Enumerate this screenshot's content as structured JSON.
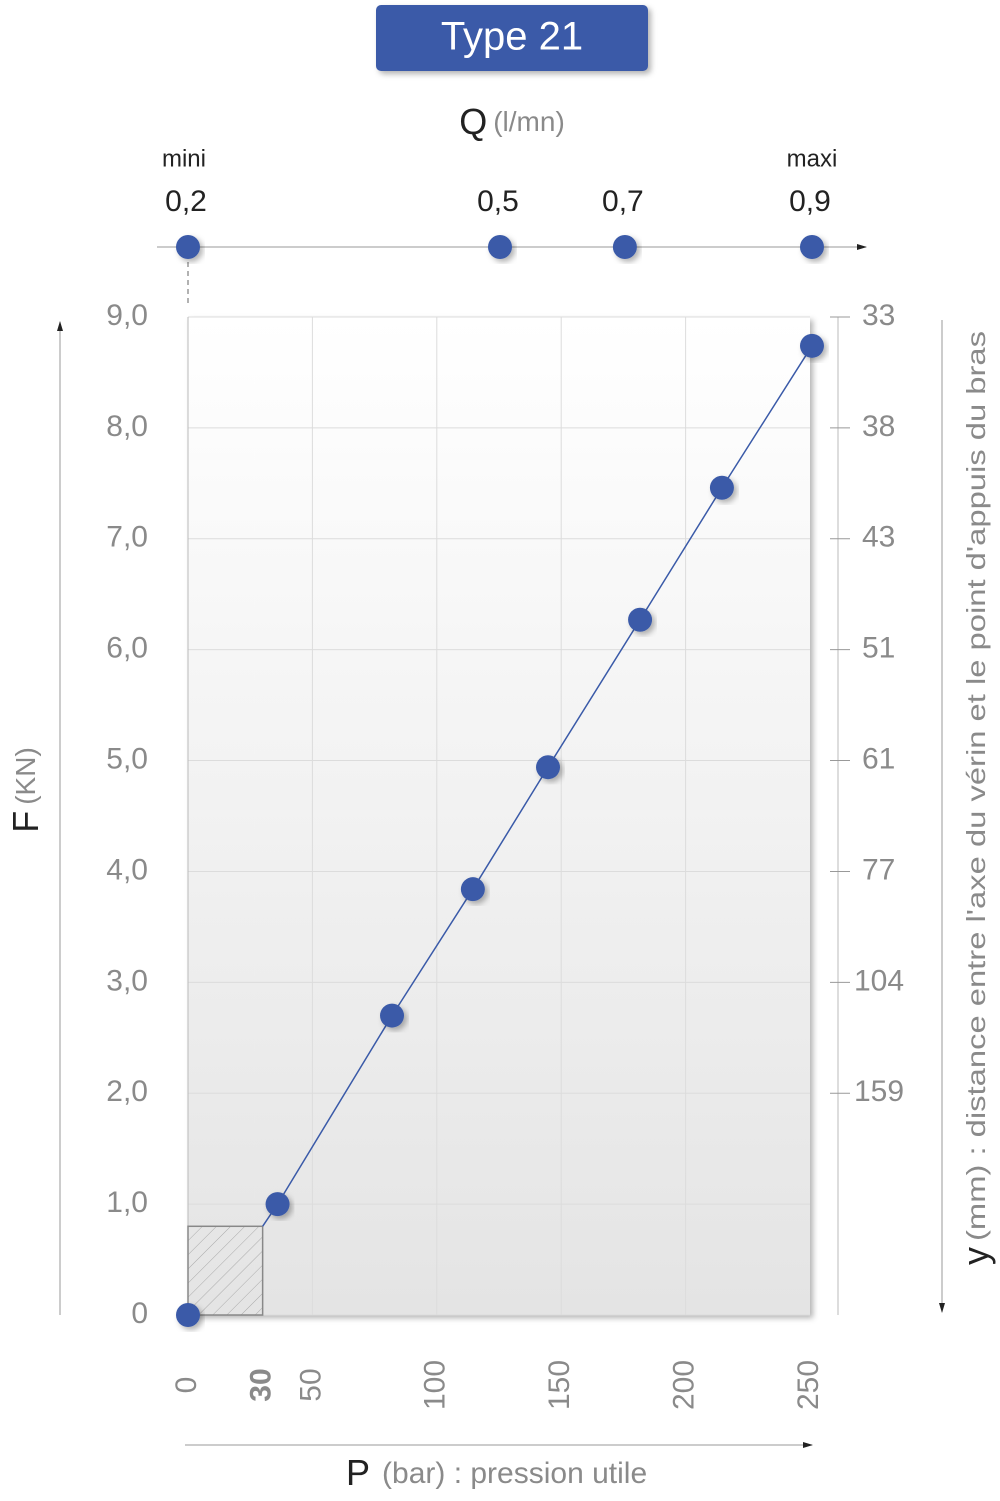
{
  "chart_data": {
    "type": "line",
    "title": "Type 21",
    "x_label": "P",
    "x_unit": "(bar) : pression utile",
    "y_label": "F",
    "y_unit": "(KN)",
    "y2_label": "y",
    "y2_unit": "(mm) : distance entre l'axe du vérin et le point d'appuis du bras",
    "x": [
      0,
      36,
      82,
      114.5,
      144.7,
      181.7,
      214.6,
      250.8
    ],
    "values": [
      0,
      1.0,
      2.7,
      3.84,
      4.94,
      6.27,
      7.46,
      8.74
    ],
    "color": "#3a5aa8",
    "shaded_region": {
      "xlim": [
        0,
        30
      ],
      "ylim": [
        0,
        0.8
      ]
    },
    "xlim": [
      0,
      250
    ],
    "ylim": [
      0,
      9
    ],
    "xticks": [
      0,
      30,
      50,
      100,
      150,
      200,
      250
    ],
    "grid_x": [
      50,
      100,
      150,
      200
    ],
    "yticks": [
      0,
      {
        "value": 1,
        "label": "1,0"
      },
      {
        "value": 2,
        "label": "2,0"
      },
      {
        "value": 3,
        "label": "3,0"
      },
      {
        "value": 4,
        "label": "4,0"
      },
      {
        "value": 5,
        "label": "5,0"
      },
      {
        "value": 6,
        "label": "6,0"
      },
      {
        "value": 7,
        "label": "7,0"
      },
      {
        "value": 8,
        "label": "8,0"
      },
      {
        "value": 9,
        "label": "9,0"
      }
    ],
    "y2_scale": {
      "at": [
        9,
        8,
        7,
        6,
        5,
        4,
        3,
        2
      ],
      "labels": [
        33,
        38,
        43,
        51,
        61,
        77,
        104,
        159
      ]
    },
    "q_axis": {
      "label": "Q",
      "unit": "(l/mn)",
      "at": [
        0,
        125.4,
        175.6,
        250.8
      ],
      "labels": [
        "0,2",
        "0,5",
        "0,7",
        "0,9"
      ],
      "min_label": "mini",
      "max_label": "maxi"
    }
  }
}
